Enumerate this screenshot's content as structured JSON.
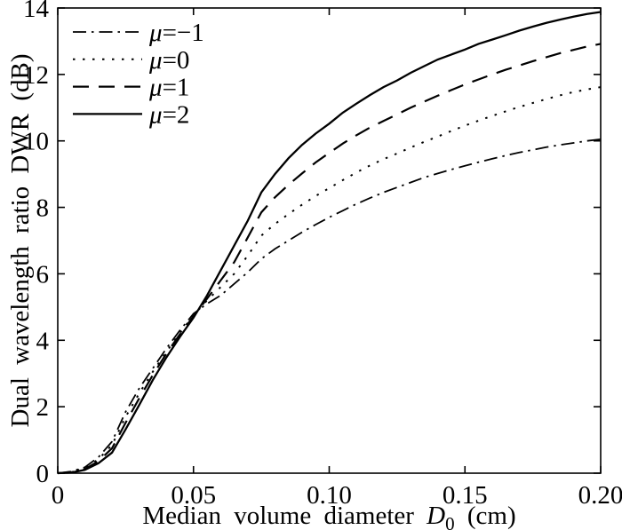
{
  "figure": {
    "background": "#ffffff",
    "frame_color": "#000000",
    "line_color": "#000000"
  },
  "chart_data": {
    "type": "line",
    "title": "",
    "xlabel": "Median volume diameter D0 (cm)",
    "xlabel_parts": {
      "pre": "Median volume diameter ",
      "variable": "D",
      "subscript": "0",
      "post": " (cm)"
    },
    "ylabel": "Dual wavelength ratio DWR (dB)",
    "xlim": [
      0,
      0.2
    ],
    "ylim": [
      0,
      14
    ],
    "x_ticks": [
      0,
      0.05,
      0.1,
      0.15,
      0.2
    ],
    "x_tick_labels": [
      "0",
      "0.05",
      "0.10",
      "0.15",
      "0.20"
    ],
    "y_ticks": [
      0,
      2,
      4,
      6,
      8,
      10,
      12,
      14
    ],
    "y_tick_labels": [
      "0",
      "2",
      "4",
      "6",
      "8",
      "10",
      "12",
      "14"
    ],
    "grid": false,
    "legend": {
      "position": "top-left",
      "box": false
    },
    "x": [
      0,
      0.005,
      0.01,
      0.015,
      0.02,
      0.025,
      0.03,
      0.035,
      0.04,
      0.045,
      0.05,
      0.055,
      0.06,
      0.065,
      0.07,
      0.075,
      0.08,
      0.085,
      0.09,
      0.095,
      0.1,
      0.105,
      0.11,
      0.115,
      0.12,
      0.125,
      0.13,
      0.135,
      0.14,
      0.145,
      0.15,
      0.155,
      0.16,
      0.165,
      0.17,
      0.175,
      0.18,
      0.185,
      0.19,
      0.195,
      0.2
    ],
    "series": [
      {
        "name": "μ=−1",
        "mu": -1,
        "line_style": "dashdot",
        "values": [
          0,
          0.05,
          0.18,
          0.48,
          0.95,
          1.85,
          2.55,
          3.15,
          3.75,
          4.3,
          4.8,
          5.1,
          5.35,
          5.7,
          6.05,
          6.45,
          6.75,
          7.0,
          7.25,
          7.48,
          7.7,
          7.9,
          8.1,
          8.28,
          8.45,
          8.6,
          8.75,
          8.9,
          9.02,
          9.14,
          9.25,
          9.36,
          9.46,
          9.56,
          9.65,
          9.73,
          9.81,
          9.88,
          9.94,
          10.0,
          10.05
        ]
      },
      {
        "name": "μ=0",
        "mu": 0,
        "line_style": "dotted",
        "values": [
          0,
          0.04,
          0.15,
          0.42,
          0.85,
          1.7,
          2.4,
          3.05,
          3.65,
          4.22,
          4.75,
          5.2,
          5.6,
          6.0,
          6.55,
          7.15,
          7.5,
          7.8,
          8.08,
          8.34,
          8.58,
          8.82,
          9.05,
          9.26,
          9.45,
          9.62,
          9.8,
          9.97,
          10.13,
          10.3,
          10.46,
          10.61,
          10.75,
          10.89,
          11.02,
          11.14,
          11.26,
          11.37,
          11.47,
          11.55,
          11.62
        ]
      },
      {
        "name": "μ=1",
        "mu": 1,
        "line_style": "dashed",
        "values": [
          0,
          0.03,
          0.12,
          0.36,
          0.75,
          1.52,
          2.25,
          2.95,
          3.6,
          4.18,
          4.72,
          5.25,
          5.8,
          6.35,
          7.1,
          7.85,
          8.3,
          8.68,
          9.02,
          9.35,
          9.64,
          9.92,
          10.17,
          10.4,
          10.6,
          10.8,
          11.0,
          11.18,
          11.36,
          11.53,
          11.7,
          11.85,
          12.0,
          12.14,
          12.27,
          12.4,
          12.52,
          12.64,
          12.74,
          12.84,
          12.92
        ]
      },
      {
        "name": "μ=2",
        "mu": 2,
        "line_style": "solid",
        "values": [
          0,
          0.02,
          0.1,
          0.3,
          0.62,
          1.32,
          2.05,
          2.8,
          3.48,
          4.1,
          4.68,
          5.35,
          6.1,
          6.85,
          7.6,
          8.45,
          9.0,
          9.48,
          9.88,
          10.22,
          10.52,
          10.85,
          11.12,
          11.38,
          11.62,
          11.82,
          12.05,
          12.25,
          12.45,
          12.6,
          12.75,
          12.92,
          13.05,
          13.18,
          13.32,
          13.44,
          13.55,
          13.65,
          13.74,
          13.82,
          13.88
        ]
      }
    ]
  }
}
